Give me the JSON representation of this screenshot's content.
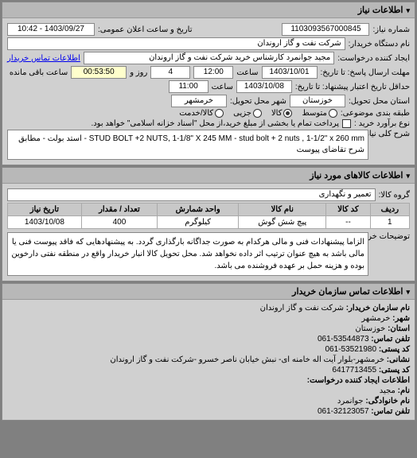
{
  "panel1": {
    "title": "اطلاعات نیاز",
    "request_no_label": "شماره نیاز:",
    "request_no": "1103093567000845",
    "announce_label": "تاریخ و ساعت اعلان عمومی:",
    "announce_value": "1403/09/27 - 10:42",
    "org_label": "نام دستگاه خریدار:",
    "org_value": "شرکت نفت و گاز اروندان",
    "requester_label": "ایجاد کننده درخواست:",
    "requester_value": "مجید جوانمرد کارشناس خرید شرکت نفت و گاز اروندان",
    "contact_link": "اطلاعات تماس خریدار",
    "deadline_label": "مهلت ارسال پاسخ: تا تاریخ:",
    "deadline_date": "1403/10/01",
    "time_label": "ساعت",
    "deadline_time": "12:00",
    "days_label": "روز و",
    "days_value": "4",
    "remain_time": "00:53:50",
    "remain_label": "ساعت باقی مانده",
    "validity_label": "حداقل تاریخ اعتبار پیشنهاد: تا تاریخ:",
    "validity_date": "1403/10/08",
    "validity_time": "11:00",
    "delivery_state_label": "استان محل تحویل:",
    "delivery_state": "خوزستان",
    "delivery_city_label": "شهر محل تحویل:",
    "delivery_city": "خرمشهر",
    "cat_label": "طبقه بندی موضوعی:",
    "cat_options": [
      "متوسط",
      "کالا",
      "جزیی",
      "کالا/خدمت"
    ],
    "need_type_label": "نوع برآورد خرید :",
    "need_type_text": "پرداخت تمام یا بخشی از مبلغ خرید،از محل \"اسناد خزانه اسلامی\" خواهد بود.",
    "desc_label": "شرح کلی نیاز:",
    "desc_text": "STUD BOLT +2 NUTS, 1-1/8\" X 245 MM - stud bolt + 2 nuts , 1-1/2\" x 260 mm - استد بولت - مطابق شرح تقاضای پیوست"
  },
  "panel2": {
    "title": "اطلاعات کالاهای مورد نیاز",
    "group_label": "گروه کالا:",
    "group_value": "تعمیر و نگهداری",
    "columns": [
      "ردیف",
      "کد کالا",
      "نام کالا",
      "واحد شمارش",
      "تعداد / مقدار",
      "تاریخ نیاز"
    ],
    "rows": [
      [
        "1",
        "--",
        "پیچ شش گوش",
        "کیلوگرم",
        "400",
        "1403/10/08"
      ]
    ],
    "note_label": "توضیحات خریدار:",
    "note_text": "الزاما پیشنهادات فنی و مالی هرکدام به صورت جداگانه بارگذاری گردد. به پیشنهادهایی که فاقد پیوست فنی یا مالی باشد به هیچ عنوان ترتیب اثر داده نخواهد شد. محل تحویل کالا انبار خریدار واقع در منطقه نفتی دارخوین بوده و هزینه حمل بر عهده فروشنده می باشد."
  },
  "panel3": {
    "title": "اطلاعات تماس سازمان خریدار",
    "lines": [
      {
        "label": "نام سازمان خریدار:",
        "value": "شرکت نفت و گاز اروندان"
      },
      {
        "label": "شهر:",
        "value": "خرمشهر"
      },
      {
        "label": "استان:",
        "value": "خوزستان"
      },
      {
        "label": "تلفن تماس:",
        "value": "53544873-061"
      },
      {
        "label": "کد پستی:",
        "value": "53521980-061"
      },
      {
        "label": "نشانی:",
        "value": "خرمشهر-بلوار آیت اله خامنه ای- نبش خیابان ناصر خسرو -شرکت نفت و گاز اروندان"
      },
      {
        "label": "کد پستی:",
        "value": "6417713455"
      }
    ],
    "sub_title": "اطلاعات ایجاد کننده درخواست:",
    "sub_lines": [
      {
        "label": "نام:",
        "value": "مجید"
      },
      {
        "label": "نام خانوادگی:",
        "value": "جوانمرد"
      },
      {
        "label": "تلفن تماس:",
        "value": "32123057-061"
      }
    ]
  }
}
